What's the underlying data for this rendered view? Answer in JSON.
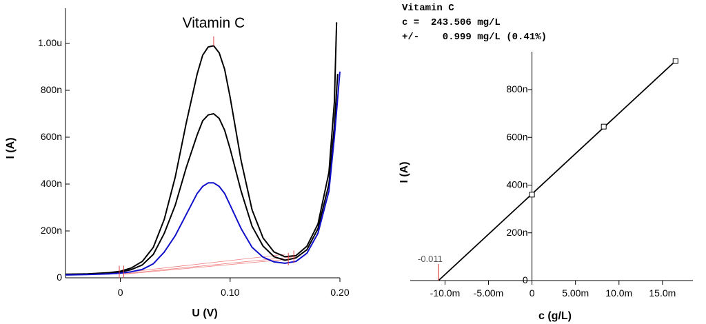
{
  "chart_data": [
    {
      "type": "line",
      "xlabel": "U (V)",
      "ylabel": "I (A)",
      "xlim": [
        -0.05,
        0.2
      ],
      "ylim": [
        0,
        1.15e-06
      ],
      "grid": false,
      "x_ticks": [
        {
          "value": 0,
          "label": "0"
        },
        {
          "value": 0.1,
          "label": "0.10"
        },
        {
          "value": 0.2,
          "label": "0.20"
        }
      ],
      "y_ticks": [
        {
          "value": 0,
          "label": "0"
        },
        {
          "value": 2e-07,
          "label": "200n"
        },
        {
          "value": 4e-07,
          "label": "400n"
        },
        {
          "value": 6e-07,
          "label": "600n"
        },
        {
          "value": 8e-07,
          "label": "800n"
        },
        {
          "value": 1e-06,
          "label": "1.00u"
        }
      ],
      "peak_label": "Vitamin C",
      "peak_potential": 0.085,
      "series": [
        {
          "color": "#000000",
          "x": [
            -0.05,
            -0.03,
            -0.01,
            0.0,
            0.01,
            0.02,
            0.03,
            0.04,
            0.05,
            0.06,
            0.07,
            0.075,
            0.08,
            0.085,
            0.09,
            0.095,
            0.1,
            0.11,
            0.12,
            0.13,
            0.14,
            0.15,
            0.16,
            0.17,
            0.18,
            0.19,
            0.195,
            0.197
          ],
          "y": [
            1.5e-08,
            1.7e-08,
            2.2e-08,
            2.8e-08,
            4.2e-08,
            7e-08,
            1.3e-07,
            2.5e-07,
            4.3e-07,
            6.6e-07,
            8.7e-07,
            9.5e-07,
            9.85e-07,
            9.9e-07,
            9.6e-07,
            8.9e-07,
            7.7e-07,
            5e-07,
            2.9e-07,
            1.7e-07,
            1.1e-07,
            9e-08,
            9.5e-08,
            1.35e-07,
            2.3e-07,
            4.5e-07,
            7.5e-07,
            1.09e-06
          ]
        },
        {
          "color": "#000000",
          "x": [
            -0.05,
            -0.03,
            -0.01,
            0.0,
            0.01,
            0.02,
            0.03,
            0.04,
            0.05,
            0.06,
            0.07,
            0.075,
            0.08,
            0.085,
            0.09,
            0.095,
            0.1,
            0.11,
            0.12,
            0.13,
            0.14,
            0.15,
            0.16,
            0.17,
            0.18,
            0.19,
            0.195,
            0.198
          ],
          "y": [
            1.5e-08,
            1.6e-08,
            2e-08,
            2.5e-08,
            3.5e-08,
            5.5e-08,
            1e-07,
            1.9e-07,
            3.1e-07,
            4.7e-07,
            6.1e-07,
            6.7e-07,
            6.95e-07,
            7e-07,
            6.8e-07,
            6.3e-07,
            5.5e-07,
            3.7e-07,
            2.2e-07,
            1.35e-07,
            9e-08,
            7.5e-08,
            8.5e-08,
            1.2e-07,
            2.1e-07,
            4e-07,
            6.5e-07,
            8.7e-07
          ]
        },
        {
          "color": "#1010cc",
          "x": [
            -0.05,
            -0.03,
            -0.01,
            0.0,
            0.01,
            0.02,
            0.03,
            0.04,
            0.05,
            0.06,
            0.07,
            0.075,
            0.08,
            0.085,
            0.09,
            0.095,
            0.1,
            0.11,
            0.12,
            0.13,
            0.14,
            0.15,
            0.16,
            0.17,
            0.18,
            0.19,
            0.195,
            0.2
          ],
          "y": [
            1.2e-08,
            1.4e-08,
            1.7e-08,
            2e-08,
            2.6e-08,
            3.6e-08,
            6e-08,
            1.1e-07,
            1.8e-07,
            2.7e-07,
            3.6e-07,
            3.9e-07,
            4.05e-07,
            4.05e-07,
            3.9e-07,
            3.6e-07,
            3.1e-07,
            2.1e-07,
            1.3e-07,
            8.8e-08,
            6.8e-08,
            6.2e-08,
            7e-08,
            1.05e-07,
            1.9e-07,
            3.7e-07,
            6e-07,
            8.8e-07
          ]
        }
      ]
    },
    {
      "type": "scatter",
      "xlabel": "c (g/L)",
      "ylabel": "I (A)",
      "xlim": [
        -0.014,
        0.0185
      ],
      "ylim": [
        0,
        9.3e-07
      ],
      "grid": false,
      "x_ticks": [
        {
          "value": -0.01,
          "label": "-10.0m"
        },
        {
          "value": -0.005,
          "label": "-5.00m"
        },
        {
          "value": 0,
          "label": "0"
        },
        {
          "value": 0.005,
          "label": "5.00m"
        },
        {
          "value": 0.01,
          "label": "10.0m"
        },
        {
          "value": 0.015,
          "label": "15.0m"
        }
      ],
      "y_ticks": [
        {
          "value": 0,
          "label": "0"
        },
        {
          "value": 2e-07,
          "label": "200n"
        },
        {
          "value": 4e-07,
          "label": "400n"
        },
        {
          "value": 6e-07,
          "label": "600n"
        },
        {
          "value": 8e-07,
          "label": "800n"
        }
      ],
      "points": {
        "x": [
          0,
          0.00825,
          0.0165
        ],
        "y": [
          3.6e-07,
          6.45e-07,
          9.2e-07
        ]
      },
      "fit_line": {
        "x": [
          -0.01075,
          0.0165
        ],
        "y": [
          0,
          9.2e-07
        ]
      },
      "x_intercept": -0.01075,
      "x_intercept_label": "-0.011",
      "result": {
        "analyte": "Vitamin C",
        "concentration": "c =  243.506 mg/L",
        "uncertainty": "+/-    0.999 mg/L (0.41%)"
      }
    }
  ]
}
